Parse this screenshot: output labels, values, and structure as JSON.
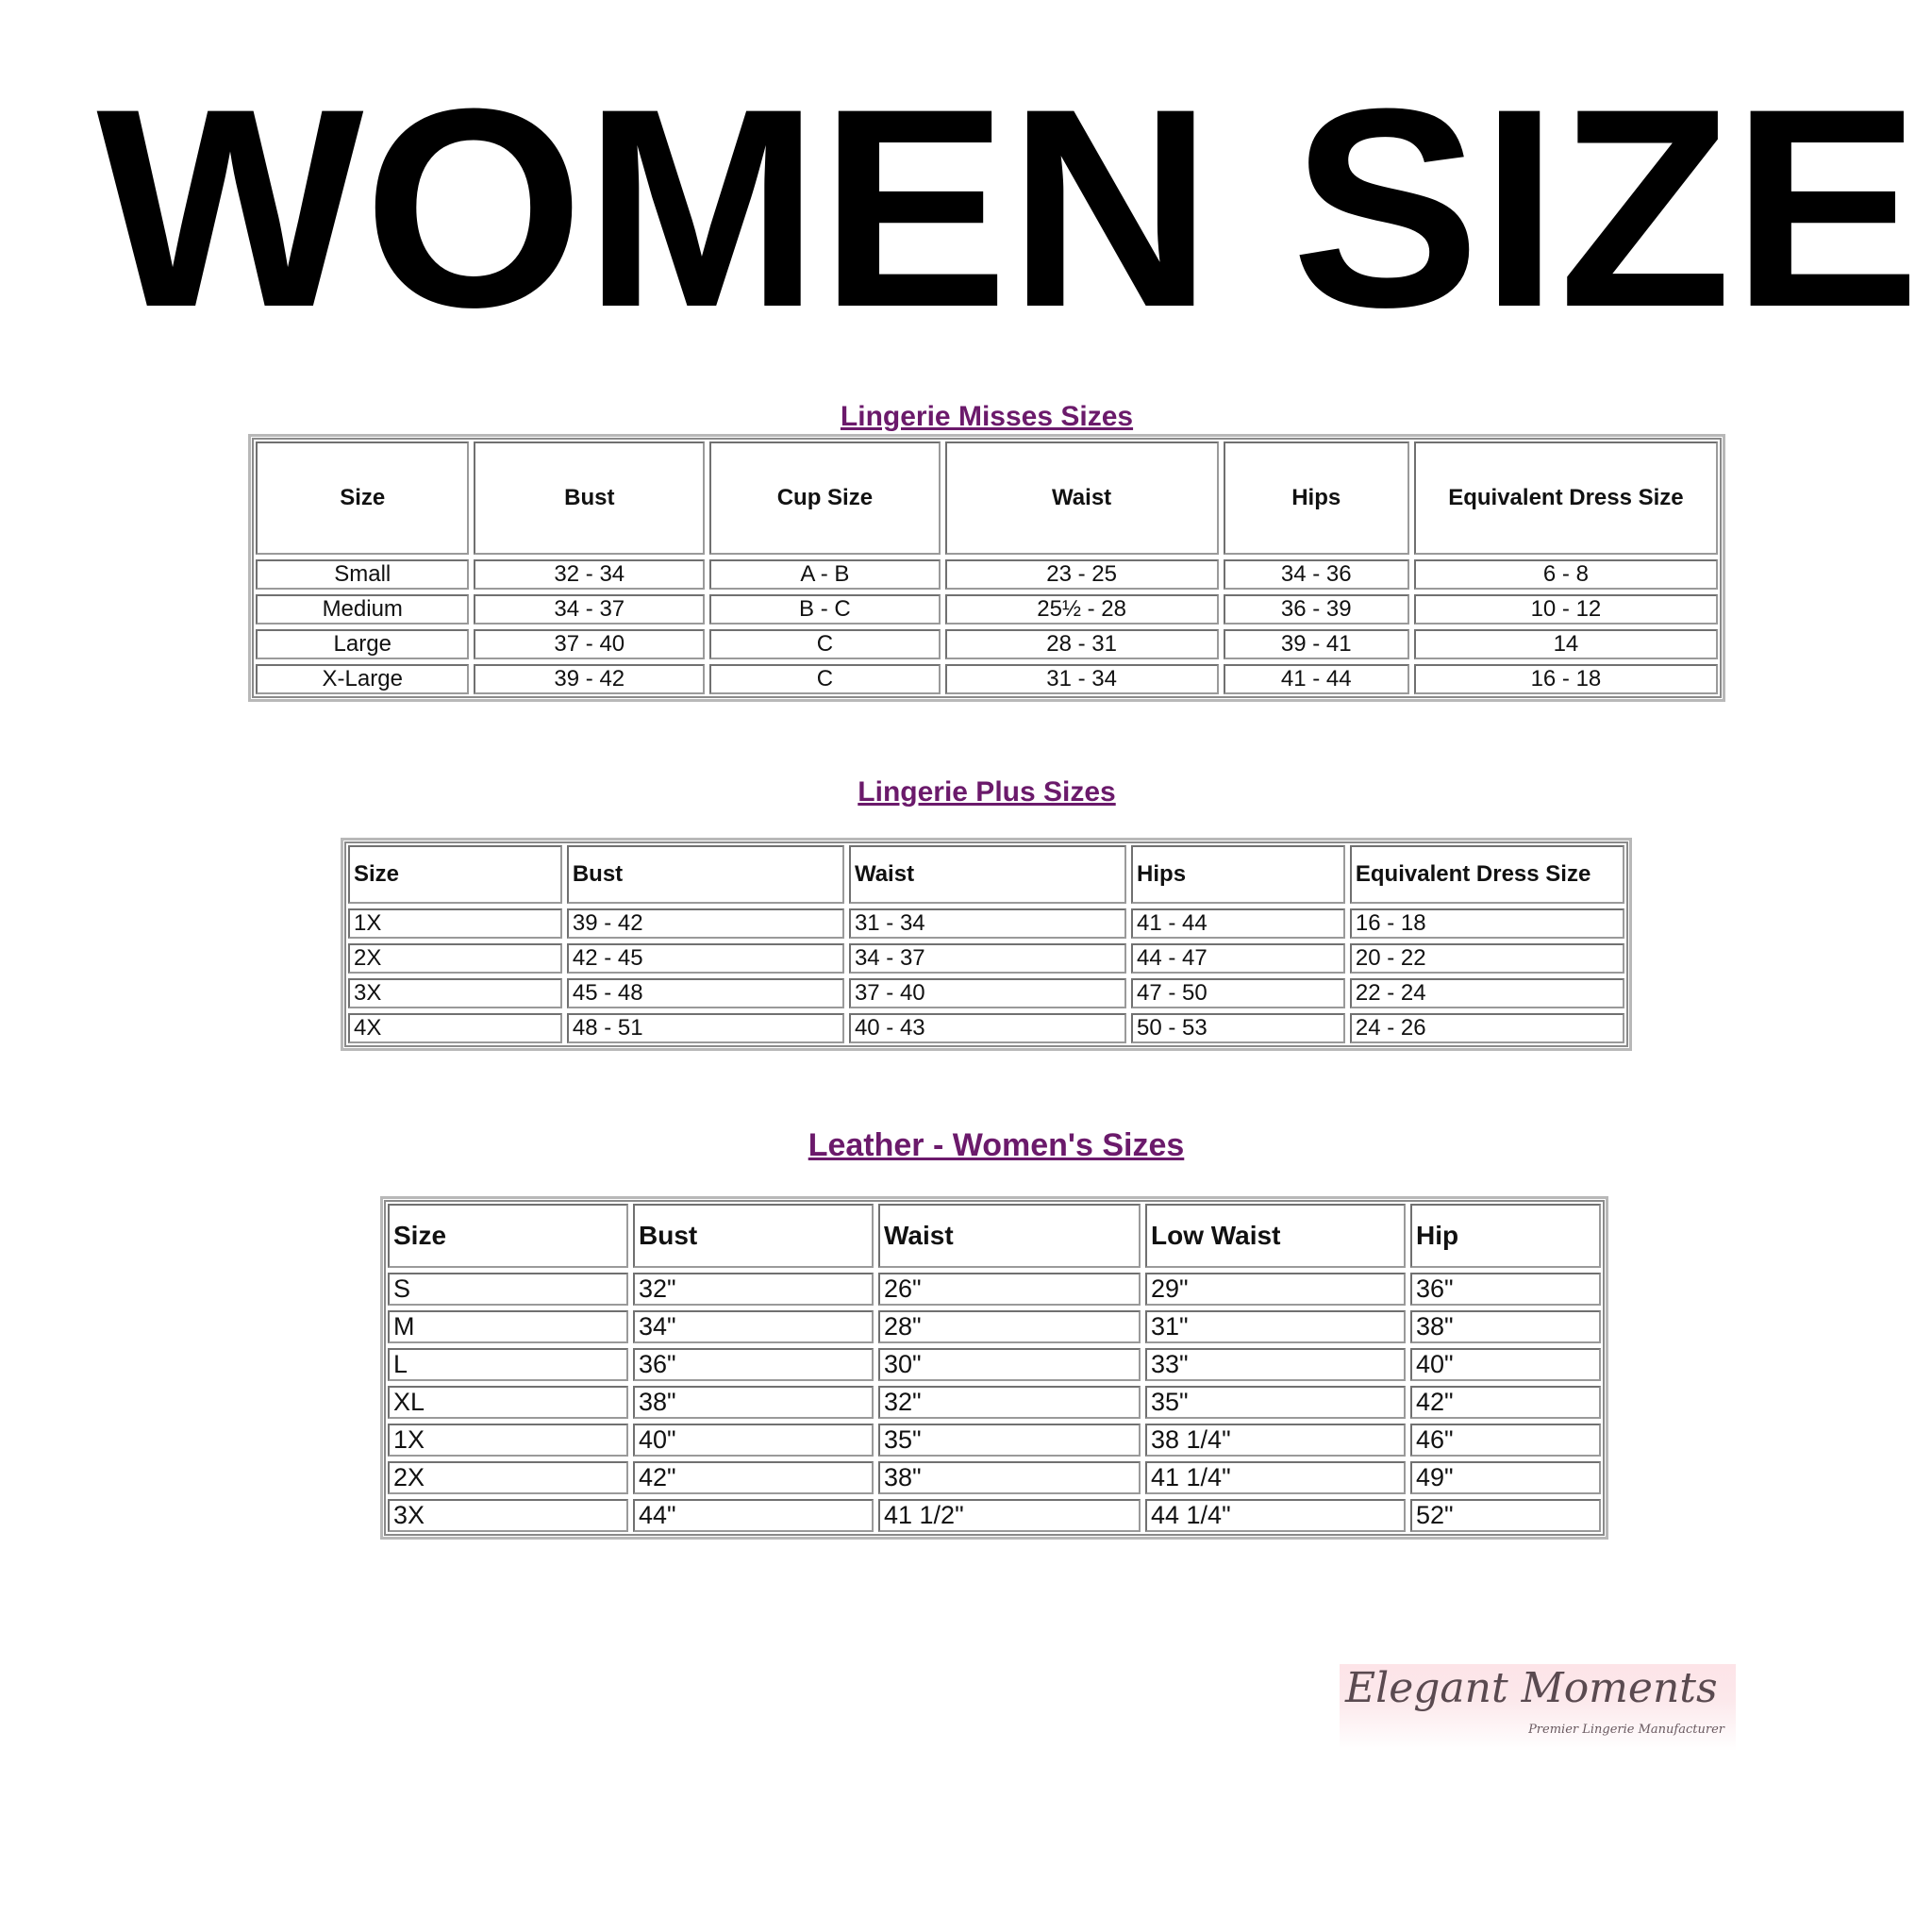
{
  "title": "WOMEN SIZE",
  "accent_color": "#6b1a6b",
  "misses": {
    "title": "Lingerie Misses Sizes",
    "headers": [
      "Size",
      "Bust",
      "Cup Size",
      "Waist",
      "Hips",
      "Equivalent Dress Size"
    ],
    "rows": [
      [
        "Small",
        "32 - 34",
        "A - B",
        "23 - 25",
        "34 - 36",
        "6 - 8"
      ],
      [
        "Medium",
        "34 - 37",
        "B - C",
        "25½ - 28",
        "36 - 39",
        "10 - 12"
      ],
      [
        "Large",
        "37 - 40",
        "C",
        "28 - 31",
        "39 - 41",
        "14"
      ],
      [
        "X-Large",
        "39 - 42",
        "C",
        "31 - 34",
        "41 - 44",
        "16 - 18"
      ]
    ]
  },
  "plus": {
    "title": "Lingerie Plus Sizes",
    "headers": [
      "Size",
      "Bust",
      "Waist",
      "Hips",
      "Equivalent Dress Size"
    ],
    "rows": [
      [
        "1X",
        "39 - 42",
        "31 - 34",
        "41 - 44",
        "16 - 18"
      ],
      [
        "2X",
        "42 - 45",
        "34 - 37",
        "44 - 47",
        "20 - 22"
      ],
      [
        "3X",
        "45 - 48",
        "37 - 40",
        "47 - 50",
        "22 - 24"
      ],
      [
        "4X",
        "48 - 51",
        "40 - 43",
        "50 - 53",
        "24 - 26"
      ]
    ]
  },
  "leather": {
    "title": "Leather - Women's Sizes",
    "headers": [
      "Size",
      "Bust",
      "Waist",
      "Low Waist",
      "Hip"
    ],
    "rows": [
      [
        "S",
        "32\"",
        "26\"",
        "29\"",
        "36\""
      ],
      [
        "M",
        "34\"",
        "28\"",
        "31\"",
        "38\""
      ],
      [
        "L",
        "36\"",
        "30\"",
        "33\"",
        "40\""
      ],
      [
        "XL",
        "38\"",
        "32\"",
        "35\"",
        "42\""
      ],
      [
        "1X",
        "40\"",
        "35\"",
        "38 1/4\"",
        "46\""
      ],
      [
        "2X",
        "42\"",
        "38\"",
        "41 1/4\"",
        "49\""
      ],
      [
        "3X",
        "44\"",
        "41 1/2\"",
        "44 1/4\"",
        "52\""
      ]
    ]
  },
  "logo": {
    "name": "Elegant Moments",
    "tagline": "Premier Lingerie Manufacturer"
  }
}
